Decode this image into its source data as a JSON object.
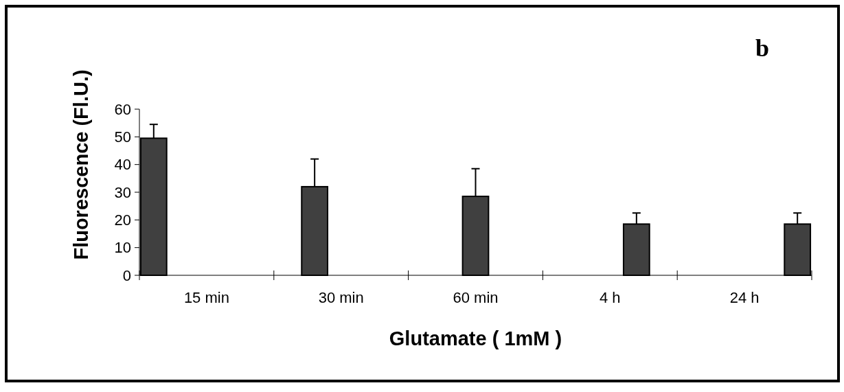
{
  "chart_data": {
    "type": "bar",
    "xlabel": "Glutamate ( 1mM )",
    "ylabel": "Fluorescence (Fl.U.)",
    "annotations": [
      "b"
    ],
    "categories": [
      "15 min",
      "30 min",
      "60 min",
      "4 h",
      "24 h"
    ],
    "series": [
      {
        "color": "#404040",
        "values": [
          49.5,
          null,
          null,
          null,
          null
        ],
        "errors": [
          [
            49.5,
            54.5
          ],
          null,
          null,
          null,
          null
        ]
      },
      {
        "color": "#404040",
        "values": [
          null,
          32,
          null,
          null,
          null
        ],
        "errors": [
          null,
          [
            32,
            42
          ],
          null,
          null,
          null
        ]
      },
      {
        "color": "#404040",
        "values": [
          null,
          null,
          28.5,
          null,
          null
        ],
        "errors": [
          null,
          null,
          [
            28.5,
            38.5
          ],
          null,
          null
        ]
      },
      {
        "color": "#404040",
        "values": [
          null,
          null,
          null,
          18.5,
          null
        ],
        "errors": [
          null,
          null,
          null,
          [
            18.5,
            22.5
          ],
          null
        ]
      },
      {
        "color": "#404040",
        "values": [
          null,
          null,
          null,
          null,
          18.5
        ],
        "errors": [
          null,
          null,
          null,
          null,
          [
            18.5,
            22.5
          ]
        ]
      }
    ],
    "ylim": [
      0,
      60
    ],
    "yticks": [
      0,
      10,
      20,
      30,
      40,
      50,
      60
    ],
    "grid": false
  }
}
